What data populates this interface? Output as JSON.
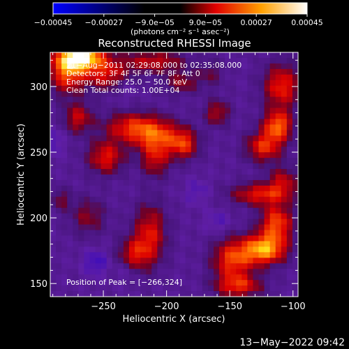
{
  "chart_data": {
    "type": "heatmap",
    "title": "Reconstructed RHESSI Image",
    "xlabel": "Heliocentric X (arcsec)",
    "ylabel": "Heliocentric Y (arcsec)",
    "xlim": [
      -292,
      -96
    ],
    "ylim": [
      140,
      326
    ],
    "xticks": [
      -250,
      -200,
      -150,
      -100
    ],
    "yticks": [
      150,
      200,
      250,
      300
    ],
    "colorbar": {
      "label": "(photons cm⁻² s⁻¹ asec⁻²)",
      "range": [
        -0.00045,
        0.00045
      ],
      "tick_values": [
        -0.00045,
        -0.00027,
        -9e-05,
        9e-05,
        0.00027,
        0.00045
      ],
      "tick_labels": [
        "−0.00045",
        "−0.00027",
        "−9.0e−05",
        "9.0e−05",
        "0.00027",
        "0.00045"
      ]
    },
    "annotations": [
      "21−Aug−2011 02:29:08.000 to 02:35:08.000",
      "Detectors: 3F 4F 5F 6F 7F 8F, Att 0",
      "Energy Range: 25.0 − 50.0 keV",
      "Clean    Total counts: 1.00E+04"
    ],
    "peak_label": "Position of Peak = [−266,324]",
    "peak": [
      -266,
      324
    ],
    "blobs": [
      {
        "x": -266,
        "y": 322,
        "sx": 13,
        "sy": 7,
        "a": 0.00045
      },
      {
        "x": -279,
        "y": 312,
        "sx": 10,
        "sy": 12,
        "a": 0.0003
      },
      {
        "x": -246,
        "y": 308,
        "sx": 13,
        "sy": 8,
        "a": 0.00021
      },
      {
        "x": -210,
        "y": 319,
        "sx": 17,
        "sy": 6,
        "a": 0.0002
      },
      {
        "x": -228,
        "y": 269,
        "sx": 15,
        "sy": 8,
        "a": 0.00024
      },
      {
        "x": -207,
        "y": 262,
        "sx": 13,
        "sy": 9,
        "a": 0.00026
      },
      {
        "x": -186,
        "y": 256,
        "sx": 8,
        "sy": 8,
        "a": 0.00024
      },
      {
        "x": -209,
        "y": 244,
        "sx": 8,
        "sy": 9,
        "a": 0.00019
      },
      {
        "x": -248,
        "y": 246,
        "sx": 10,
        "sy": 9,
        "a": 0.00024
      },
      {
        "x": -270,
        "y": 276,
        "sx": 8,
        "sy": 8,
        "a": 0.0002
      },
      {
        "x": -188,
        "y": 303,
        "sx": 10,
        "sy": 6,
        "a": 0.00015
      },
      {
        "x": -160,
        "y": 280,
        "sx": 7,
        "sy": 7,
        "a": 0.00018
      },
      {
        "x": -109,
        "y": 300,
        "sx": 10,
        "sy": 12,
        "a": 0.00026
      },
      {
        "x": -123,
        "y": 254,
        "sx": 10,
        "sy": 8,
        "a": 0.00026
      },
      {
        "x": -112,
        "y": 270,
        "sx": 8,
        "sy": 8,
        "a": 0.00032
      },
      {
        "x": -108,
        "y": 228,
        "sx": 8,
        "sy": 8,
        "a": 0.00018
      },
      {
        "x": -126,
        "y": 218,
        "sx": 16,
        "sy": 6,
        "a": 0.00024
      },
      {
        "x": -123,
        "y": 176,
        "sx": 12,
        "sy": 8,
        "a": 0.0004
      },
      {
        "x": -113,
        "y": 196,
        "sx": 9,
        "sy": 10,
        "a": 0.0003
      },
      {
        "x": -148,
        "y": 168,
        "sx": 11,
        "sy": 11,
        "a": 0.00028
      },
      {
        "x": -143,
        "y": 148,
        "sx": 13,
        "sy": 6,
        "a": 0.00024
      },
      {
        "x": -213,
        "y": 188,
        "sx": 9,
        "sy": 16,
        "a": 0.00023
      },
      {
        "x": -226,
        "y": 172,
        "sx": 9,
        "sy": 9,
        "a": 0.0002
      },
      {
        "x": -262,
        "y": 201,
        "sx": 10,
        "sy": 10,
        "a": 0.00014
      },
      {
        "x": -284,
        "y": 214,
        "sx": 6,
        "sy": 6,
        "a": 0.00012
      },
      {
        "x": -165,
        "y": 310,
        "sx": 7,
        "sy": 7,
        "a": 0.0001
      },
      {
        "x": -232,
        "y": 160,
        "sx": 6,
        "sy": 6,
        "a": -6e-05
      },
      {
        "x": -176,
        "y": 220,
        "sx": 7,
        "sy": 7,
        "a": -8e-05
      },
      {
        "x": -256,
        "y": 166,
        "sx": 7,
        "sy": 7,
        "a": -0.00012
      },
      {
        "x": -292,
        "y": 258,
        "sx": 7,
        "sy": 8,
        "a": -0.0001
      },
      {
        "x": -160,
        "y": 197,
        "sx": 7,
        "sy": 6,
        "a": -8e-05
      },
      {
        "x": -233,
        "y": 300,
        "sx": 7,
        "sy": 7,
        "a": -7e-05
      }
    ]
  },
  "footer": {
    "timestamp": "13−May−2022 09:42"
  }
}
